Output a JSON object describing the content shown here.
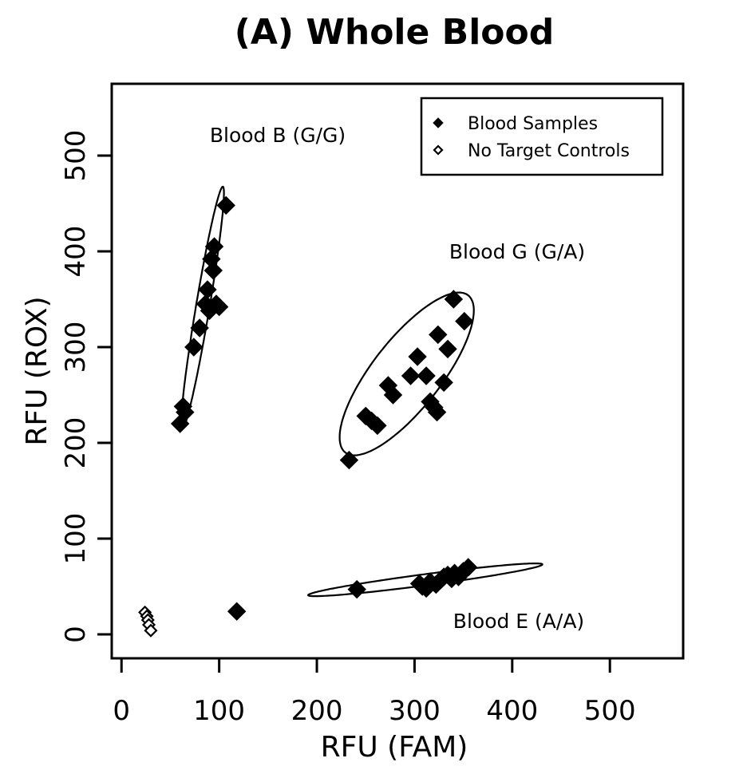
{
  "chart_data": {
    "type": "scatter",
    "title": "(A) Whole Blood",
    "xlabel": "RFU (FAM)",
    "ylabel": "RFU (ROX)",
    "xlim": [
      -10,
      575
    ],
    "ylim": [
      -25,
      575
    ],
    "xticks": [
      0,
      100,
      200,
      300,
      400,
      500
    ],
    "yticks": [
      0,
      100,
      200,
      300,
      400,
      500
    ],
    "legend": {
      "position": "top-right",
      "entries": [
        "Blood Samples",
        "No Target Controls"
      ]
    },
    "series": [
      {
        "name": "Blood Samples",
        "marker": "filled-diamond",
        "points": [
          [
            60,
            220
          ],
          [
            63,
            238
          ],
          [
            65,
            232
          ],
          [
            74,
            300
          ],
          [
            80,
            320
          ],
          [
            86,
            345
          ],
          [
            88,
            360
          ],
          [
            90,
            338
          ],
          [
            92,
            392
          ],
          [
            94,
            380
          ],
          [
            95,
            405
          ],
          [
            97,
            345
          ],
          [
            100,
            342
          ],
          [
            107,
            448
          ],
          [
            118,
            24
          ],
          [
            241,
            47
          ],
          [
            305,
            53
          ],
          [
            308,
            50
          ],
          [
            312,
            48
          ],
          [
            316,
            55
          ],
          [
            322,
            52
          ],
          [
            327,
            57
          ],
          [
            330,
            60
          ],
          [
            334,
            62
          ],
          [
            338,
            58
          ],
          [
            341,
            64
          ],
          [
            345,
            60
          ],
          [
            350,
            66
          ],
          [
            355,
            70
          ],
          [
            233,
            182
          ],
          [
            250,
            228
          ],
          [
            256,
            223
          ],
          [
            262,
            218
          ],
          [
            273,
            260
          ],
          [
            278,
            250
          ],
          [
            296,
            270
          ],
          [
            303,
            290
          ],
          [
            312,
            270
          ],
          [
            316,
            243
          ],
          [
            320,
            237
          ],
          [
            323,
            232
          ],
          [
            324,
            313
          ],
          [
            330,
            263
          ],
          [
            334,
            298
          ],
          [
            340,
            350
          ],
          [
            351,
            327
          ]
        ]
      },
      {
        "name": "No Target Controls",
        "marker": "open-diamond",
        "points": [
          [
            24,
            23
          ],
          [
            26,
            19
          ],
          [
            27,
            15
          ],
          [
            28,
            10
          ],
          [
            30,
            4
          ]
        ]
      }
    ],
    "clusters": [
      {
        "label": "Blood B (G/G)",
        "cx": 83,
        "cy": 341,
        "rx": 154,
        "ry": 8.5,
        "angle_deg": -80.5
      },
      {
        "label": "Blood G (G/A)",
        "cx": 292,
        "cy": 272,
        "rx": 125,
        "ry": 43,
        "angle_deg": -52
      },
      {
        "label": "Blood E (A/A)",
        "cx": 311,
        "cy": 57,
        "rx": 148,
        "ry": 7,
        "angle_deg": -7.5
      }
    ]
  }
}
